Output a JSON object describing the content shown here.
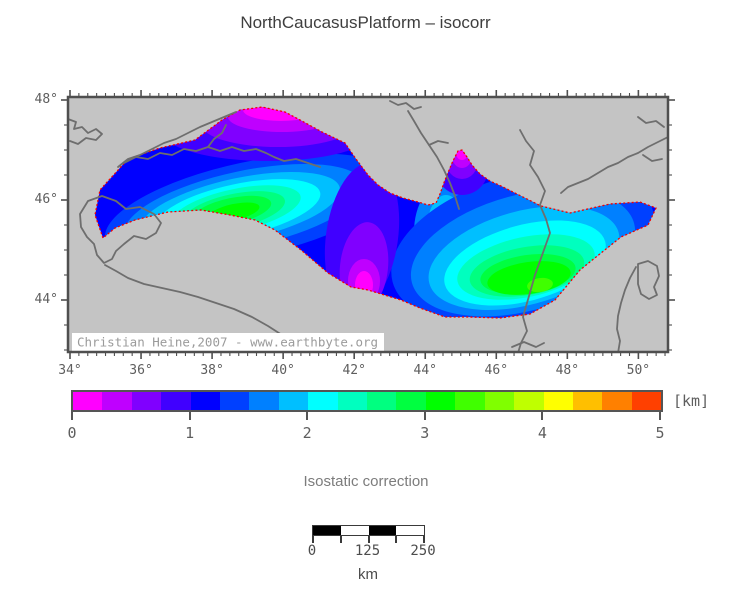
{
  "figure": {
    "title": "NorthCaucasusPlatform – isocorr",
    "colorbar_unit": "[km]",
    "colorbar_label": "Isostatic correction",
    "attribution": "Christian Heine,2007 - www.earthbyte.org",
    "scalebar": {
      "labels": [
        "0",
        "125",
        "250"
      ],
      "unit": "km"
    }
  },
  "axes": {
    "x_ticks": [
      "34°",
      "36°",
      "38°",
      "40°",
      "42°",
      "44°",
      "46°",
      "48°",
      "50°"
    ],
    "y_ticks": [
      "48°",
      "46°",
      "44°"
    ]
  },
  "colorbar": {
    "ticks": [
      "0",
      "1",
      "2",
      "3",
      "4",
      "5"
    ],
    "colors": [
      "#FF00FF",
      "#BF00FF",
      "#8000FF",
      "#4000FF",
      "#0000FF",
      "#0040FF",
      "#0080FF",
      "#00BFFF",
      "#00FFFF",
      "#00FFBF",
      "#00FF80",
      "#00FF40",
      "#00FF00",
      "#40FF00",
      "#80FF00",
      "#BFFF00",
      "#FFFF00",
      "#FFBF00",
      "#FF8000",
      "#FF4000"
    ]
  },
  "map": {
    "land_color": "#c4c4c4",
    "frame_color": "#4f4f4f",
    "coast_color": "#6e6e6e",
    "platform_border_color": "#f30000"
  },
  "chart_data": {
    "type": "heatmap",
    "subtype": "geographic-contour-map",
    "title": "NorthCaucasusPlatform – isocorr",
    "variable": "Isostatic correction",
    "unit": "km",
    "lon_range_deg": [
      34,
      51
    ],
    "lat_range_deg": [
      43,
      48
    ],
    "value_range_km": [
      0,
      5
    ],
    "contour_interval_km": 0.25,
    "palette": "rainbow (magenta→red, 20 steps)",
    "pattern": "low values (0–1 km, magenta/purple/blue) along the northern rim and the central divide; highest values (≈3–3.5 km, green) in the south-central cores of the western and eastern lobes",
    "scalebar_km": [
      0,
      125,
      250
    ]
  }
}
